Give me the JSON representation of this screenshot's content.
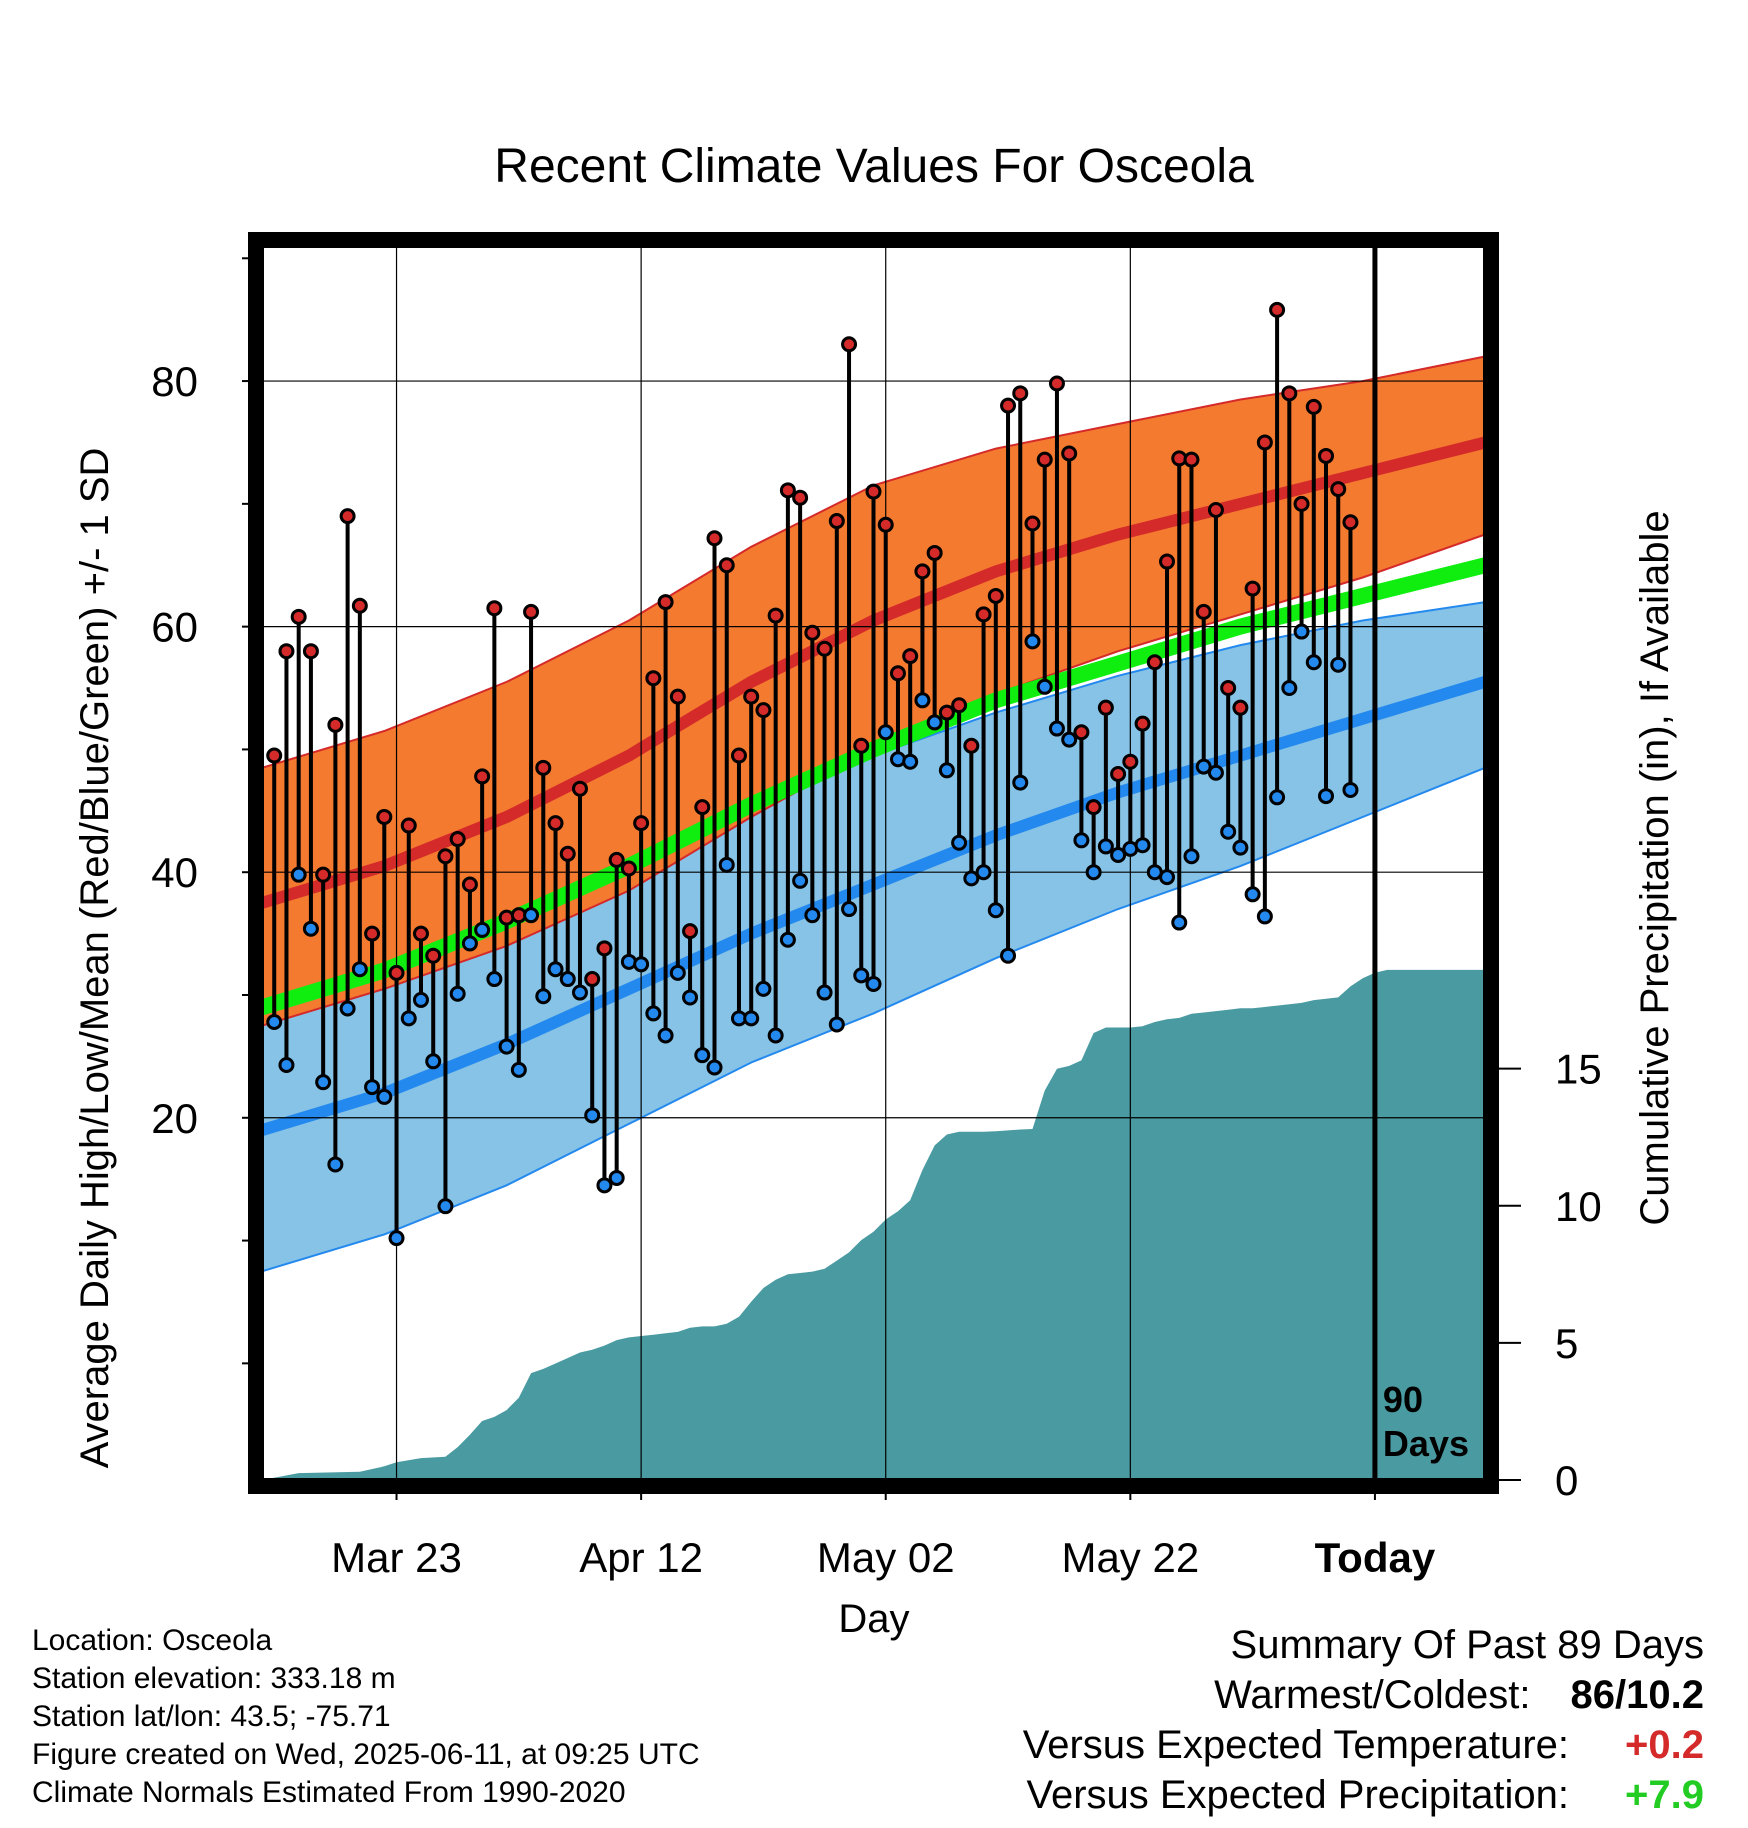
{
  "chart_data": {
    "type": "line",
    "title": "Recent Climate Values For Osceola",
    "xlabel": "Day",
    "ylabel": "Average Daily High/Low/Mean (Red/Blue/Green) +/- 1 SD",
    "y2label": "Cumulative Precipitation (in), If Available",
    "x_tick_labels": [
      "Mar 23",
      "Apr 12",
      "May 02",
      "May 22",
      "Today"
    ],
    "x_tick_days": [
      22,
      42,
      62,
      82,
      102
    ],
    "x_range": [
      11,
      111
    ],
    "ylim": [
      -9.5,
      91
    ],
    "y_ticks": [
      20,
      40,
      60,
      80
    ],
    "y2lim": [
      0,
      45
    ],
    "y2_ticks": [
      0,
      5,
      10,
      15
    ],
    "today_day": 102,
    "today_label": "90 Days",
    "grid": true,
    "colors": {
      "high_band": "#f47a30",
      "high_line": "#d42a2a",
      "low_band": "#86c3e6",
      "low_line": "#2489ee",
      "mean_line": "#10ee10",
      "precip": "#4a9aa2",
      "high_marker": "#d42a2a",
      "low_marker": "#2489ee"
    },
    "normals": {
      "days": [
        11,
        21,
        31,
        41,
        51,
        61,
        71,
        81,
        91,
        101,
        111
      ],
      "high_mean": [
        37.5,
        40.5,
        44.5,
        49.5,
        55.5,
        60.5,
        64.5,
        67.5,
        70,
        72.5,
        75
      ],
      "high_upper": [
        48.5,
        51.5,
        55.5,
        60.5,
        66.5,
        71.5,
        74.5,
        76.5,
        78.5,
        80,
        82
      ],
      "high_lower": [
        27.5,
        30.5,
        34,
        38.5,
        44.5,
        50,
        54.5,
        58,
        61,
        64,
        67.5
      ],
      "low_mean": [
        19,
        22,
        26,
        30.5,
        35,
        39,
        43,
        46.5,
        49.5,
        52.5,
        55.5
      ],
      "low_upper": [
        30.5,
        33.5,
        37,
        41.5,
        45.5,
        49.5,
        53,
        56,
        58.5,
        60.5,
        62
      ],
      "low_lower": [
        7.5,
        10.5,
        14.5,
        19.5,
        24.5,
        28.5,
        33,
        37,
        40.5,
        44.5,
        48.5
      ],
      "mean": [
        29,
        32,
        36,
        40.5,
        45.5,
        50,
        54,
        57,
        60,
        62.5,
        65
      ]
    },
    "series": [
      {
        "name": "High",
        "values": [
          49.5,
          58,
          60.8,
          58,
          39.8,
          52,
          69,
          61.7,
          35,
          44.5,
          31.8,
          43.8,
          35,
          33.2,
          41.3,
          42.7,
          39,
          47.8,
          61.5,
          36.3,
          36.5,
          61.2,
          48.5,
          44,
          41.5,
          46.8,
          31.3,
          33.8,
          41,
          40.3,
          44,
          55.8,
          62,
          54.3,
          35.2,
          45.3,
          67.2,
          65,
          49.5,
          54.3,
          53.2,
          60.9,
          71.1,
          70.5,
          59.5,
          58.2,
          68.6,
          83,
          50.3,
          71,
          68.3,
          56.2,
          57.6,
          64.5,
          66,
          53,
          53.6,
          50.3,
          61,
          62.5,
          78,
          79,
          68.4,
          73.6,
          79.8,
          74.1,
          51.4,
          45.3,
          53.4,
          48,
          49,
          52.1,
          57.1,
          65.3,
          73.7,
          73.6,
          61.2,
          69.5,
          55,
          53.4,
          63.1,
          75,
          85.8,
          79,
          70,
          77.9,
          73.9,
          71.2,
          68.5
        ],
        "color": "#d42a2a"
      },
      {
        "name": "Low",
        "values": [
          27.8,
          24.3,
          39.8,
          35.4,
          22.9,
          16.2,
          28.9,
          32.1,
          22.5,
          21.7,
          10.2,
          28.1,
          29.6,
          24.6,
          12.8,
          30.1,
          34.2,
          35.3,
          31.3,
          25.8,
          23.9,
          36.5,
          29.9,
          32.1,
          31.3,
          30.2,
          20.2,
          14.5,
          15.1,
          32.7,
          32.5,
          28.5,
          26.7,
          31.8,
          29.8,
          25.1,
          24.1,
          40.6,
          28.1,
          28.1,
          30.5,
          26.7,
          34.5,
          39.3,
          36.5,
          30.2,
          27.6,
          37,
          31.6,
          30.9,
          51.4,
          49.2,
          49,
          54,
          52.2,
          48.3,
          42.4,
          39.5,
          40,
          36.9,
          33.2,
          47.3,
          58.8,
          55.1,
          51.7,
          50.8,
          42.6,
          40,
          42.1,
          41.4,
          41.9,
          42.2,
          40,
          39.6,
          35.9,
          41.3,
          48.6,
          48.1,
          43.3,
          42,
          38.2,
          36.4,
          46.1,
          55,
          59.6,
          57.1,
          46.2,
          56.9,
          46.7
        ],
        "color": "#2489ee"
      },
      {
        "name": "Precipitation",
        "axis": "y2",
        "x": [
          11,
          14,
          19,
          21,
          22,
          24,
          26,
          27,
          28,
          29,
          30,
          31,
          32,
          33,
          34,
          35,
          36,
          37,
          38,
          39,
          40,
          41,
          42,
          43,
          44,
          45,
          46,
          47,
          48,
          49,
          50,
          51,
          52,
          53,
          54,
          55,
          56,
          57,
          58,
          59,
          60,
          61,
          62,
          63,
          64,
          65,
          66,
          67,
          68,
          69,
          70,
          71,
          72,
          73,
          74,
          75,
          76,
          77,
          78,
          79,
          80,
          81,
          82,
          83,
          84,
          85,
          86,
          87,
          88,
          89,
          90,
          91,
          92,
          93,
          94,
          95,
          96,
          97,
          98,
          99,
          100,
          101,
          102,
          103,
          111
        ],
        "values": [
          0,
          0.25,
          0.3,
          0.5,
          0.65,
          0.8,
          0.85,
          1.2,
          1.65,
          2.15,
          2.3,
          2.55,
          3.0,
          3.9,
          4.05,
          4.25,
          4.45,
          4.65,
          4.75,
          4.9,
          5.1,
          5.2,
          5.25,
          5.3,
          5.35,
          5.4,
          5.55,
          5.6,
          5.6,
          5.7,
          5.95,
          6.5,
          7.0,
          7.3,
          7.5,
          7.55,
          7.6,
          7.7,
          8.0,
          8.3,
          8.75,
          9.05,
          9.5,
          9.8,
          10.2,
          11.3,
          12.2,
          12.6,
          12.7,
          12.7,
          12.7,
          12.72,
          12.75,
          12.78,
          12.8,
          14.2,
          15.0,
          15.1,
          15.3,
          16.3,
          16.5,
          16.5,
          16.5,
          16.55,
          16.7,
          16.8,
          16.85,
          17.0,
          17.05,
          17.1,
          17.15,
          17.2,
          17.2,
          17.25,
          17.3,
          17.35,
          17.4,
          17.5,
          17.55,
          17.6,
          18.0,
          18.3,
          18.5,
          18.6,
          18.6
        ],
        "color": "#4a9aa2"
      }
    ]
  },
  "footer": {
    "location": "Location: Osceola",
    "elevation": "Station elevation: 333.18 m",
    "latlon": "Station lat/lon: 43.5; -75.71",
    "created": "Figure created on Wed, 2025-06-11, at 09:25 UTC",
    "normals": "Climate Normals Estimated From 1990-2020"
  },
  "summary": {
    "title": "Summary Of Past 89 Days",
    "warmest_label": "Warmest/Coldest:",
    "warmest_value": "86/10.2",
    "temp_label": "Versus Expected Temperature:",
    "temp_value": "+0.2",
    "temp_color": "#d42a2a",
    "precip_label": "Versus Expected Precipitation:",
    "precip_value": "+7.9",
    "precip_color": "#22cc22"
  }
}
